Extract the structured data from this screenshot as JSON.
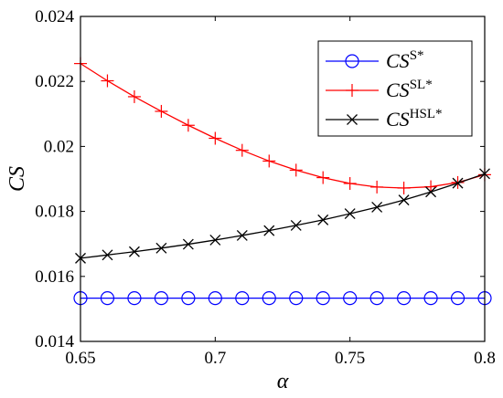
{
  "chart_data": {
    "type": "line",
    "xlabel": "α",
    "ylabel": "CS",
    "xlim": [
      0.65,
      0.8
    ],
    "ylim": [
      0.014,
      0.024
    ],
    "x_ticks": [
      "0.65",
      "0.7",
      "0.75",
      "0.8"
    ],
    "y_ticks": [
      "0.014",
      "0.016",
      "0.018",
      "0.02",
      "0.022",
      "0.024"
    ],
    "x": [
      0.65,
      0.66,
      0.67,
      0.68,
      0.69,
      0.7,
      0.71,
      0.72,
      0.73,
      0.74,
      0.75,
      0.76,
      0.77,
      0.78,
      0.79,
      0.8
    ],
    "legend_position": "top-right",
    "grid": false,
    "series": [
      {
        "name_main": "CS",
        "name_sup": "S*",
        "color": "#0000ff",
        "marker": "circle",
        "values": [
          0.01533,
          0.01533,
          0.01533,
          0.01533,
          0.01533,
          0.01533,
          0.01533,
          0.01533,
          0.01533,
          0.01533,
          0.01533,
          0.01533,
          0.01533,
          0.01533,
          0.01533,
          0.01533
        ]
      },
      {
        "name_main": "CS",
        "name_sup": "SL*",
        "color": "#ff0000",
        "marker": "plus",
        "values": [
          0.02255,
          0.02202,
          0.02153,
          0.02108,
          0.02065,
          0.02025,
          0.01988,
          0.01955,
          0.01927,
          0.01904,
          0.01886,
          0.01875,
          0.01872,
          0.01876,
          0.01889,
          0.01913
        ]
      },
      {
        "name_main": "CS",
        "name_sup": "HSL*",
        "color": "#000000",
        "marker": "x",
        "values": [
          0.01656,
          0.01666,
          0.01676,
          0.01687,
          0.01699,
          0.01712,
          0.01726,
          0.01741,
          0.01757,
          0.01774,
          0.01793,
          0.01813,
          0.01835,
          0.0186,
          0.01887,
          0.01916
        ]
      }
    ]
  }
}
